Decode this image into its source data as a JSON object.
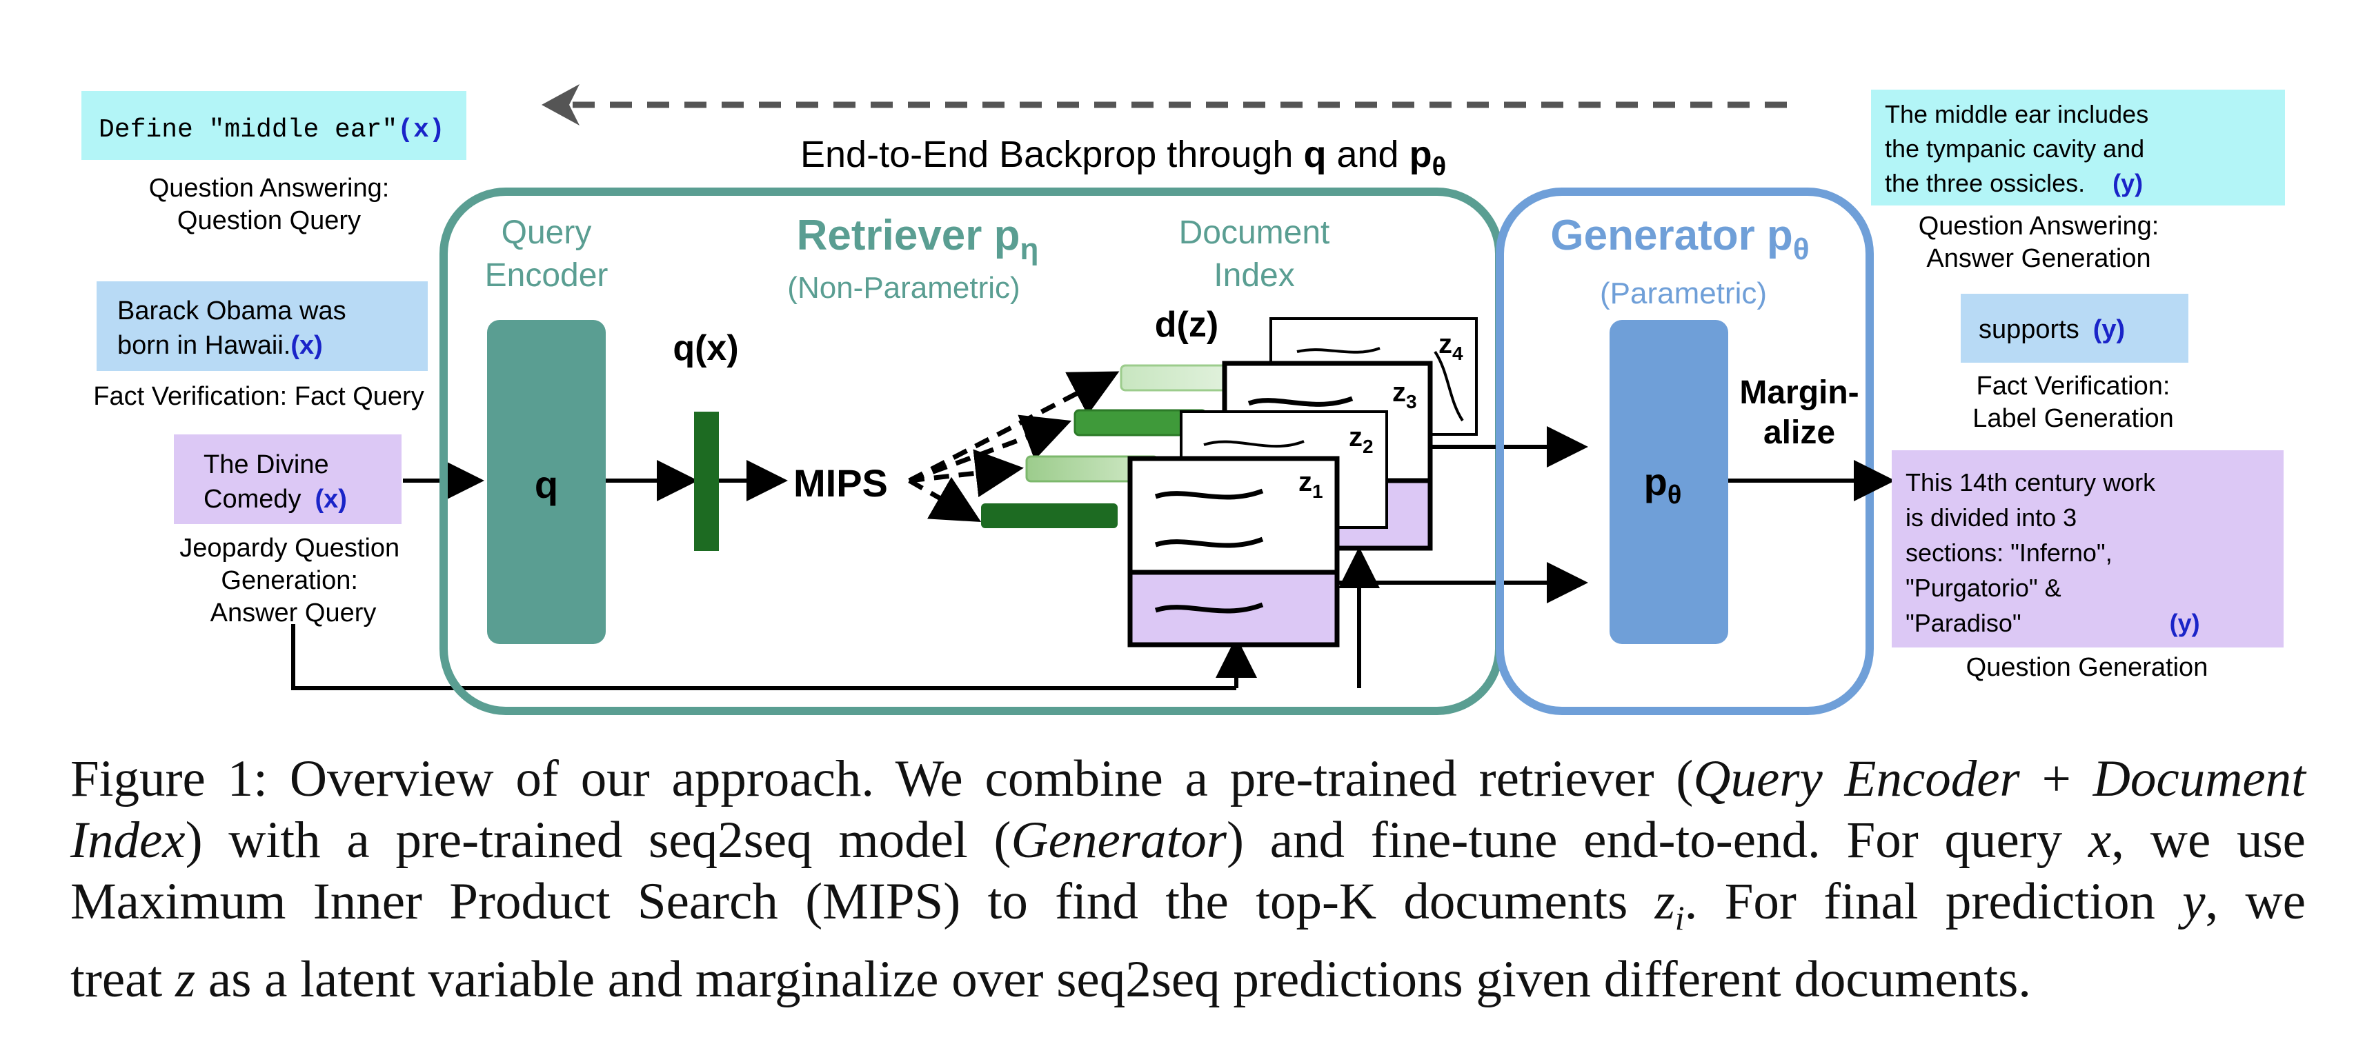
{
  "top": {
    "backprop_label_prefix": "End-to-End Backprop through ",
    "backprop_q": "q",
    "backprop_and": " and ",
    "backprop_p": "p",
    "backprop_theta": "θ"
  },
  "left": {
    "qa_query_text": "Define \"middle ear\"",
    "qa_query_var": "(x)",
    "qa_caption_1": "Question Answering:",
    "qa_caption_2": "Question Query",
    "fv_query_line1": "Barack Obama was",
    "fv_query_line2": "born in Hawaii.",
    "fv_query_var": "(x)",
    "fv_caption": "Fact Verification: Fact Query",
    "jq_query_line1": "The Divine",
    "jq_query_line2": "Comedy",
    "jq_query_var": "(x)",
    "jq_caption_1": "Jeopardy Question",
    "jq_caption_2": "Generation:",
    "jq_caption_3": "Answer Query"
  },
  "retriever": {
    "title": "Retriever p",
    "title_sub": "η",
    "subtitle": "(Non-Parametric)",
    "query_encoder_1": "Query",
    "query_encoder_2": "Encoder",
    "q_label": "q",
    "qx_label": "q(x)",
    "mips_label": "MIPS",
    "doc_index_1": "Document",
    "doc_index_2": "Index",
    "dz_label": "d(z)",
    "z1": "z",
    "z1_sub": "1",
    "z2": "z",
    "z2_sub": "2",
    "z3": "z",
    "z3_sub": "3",
    "z4": "z",
    "z4_sub": "4"
  },
  "generator": {
    "title": "Generator p",
    "title_sub": "θ",
    "subtitle": "(Parametric)",
    "p_label": "p",
    "p_sub": "θ",
    "marginalize_1": "Margin-",
    "marginalize_2": "alize"
  },
  "right": {
    "qa_answer_line1": "The middle ear includes",
    "qa_answer_line2": "the tympanic cavity and",
    "qa_answer_line3": "the three ossicles.",
    "qa_answer_var": "(y)",
    "qa_caption_1": "Question Answering:",
    "qa_caption_2": "Answer Generation",
    "fv_answer": "supports",
    "fv_answer_var": "(y)",
    "fv_caption_1": "Fact Verification:",
    "fv_caption_2": "Label Generation",
    "qg_line1": "This 14th century work",
    "qg_line2": "is divided into 3",
    "qg_line3": "sections: \"Inferno\",",
    "qg_line4": "\"Purgatorio\" &",
    "qg_line5": "\"Paradiso\"",
    "qg_var": "(y)",
    "qg_caption": "Question Generation"
  },
  "caption": {
    "l1_a": "Figure 1: Overview of our approach. We combine a pre-trained retriever (",
    "l1_b": "Query Encoder",
    "l1_c": " + ",
    "l1_d": "Document",
    "l2_a": "Index",
    "l2_b": ") with a pre-trained seq2seq model (",
    "l2_c": "Generator",
    "l2_d": ") and fine-tune end-to-end. For query ",
    "l2_e": "x",
    "l2_f": ", we use",
    "l3_a": "Maximum Inner Product Search (MIPS) to find the top-K documents ",
    "l3_b": "z",
    "l3_c": "i",
    "l3_d": ". For final prediction ",
    "l3_e": "y",
    "l3_f": ", we",
    "l4_a": "treat ",
    "l4_b": "z",
    "l4_c": " as a latent variable and marginalize over seq2seq predictions given different documents."
  },
  "colors": {
    "retriever": "#5a9e92",
    "generator": "#6f9fd8",
    "cyan_box": "#b3f5f7",
    "blue_box": "#b8daf5",
    "purple_box": "#dcc8f5",
    "dark_green": "#1d6b22",
    "var_blue": "#1a24c8"
  }
}
